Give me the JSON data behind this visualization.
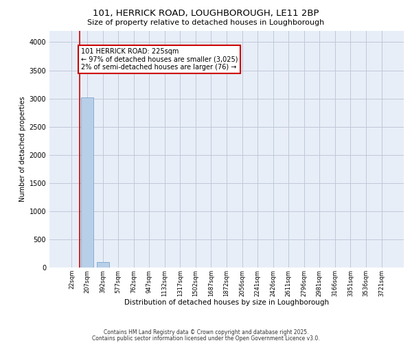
{
  "title1": "101, HERRICK ROAD, LOUGHBOROUGH, LE11 2BP",
  "title2": "Size of property relative to detached houses in Loughborough",
  "xlabel": "Distribution of detached houses by size in Loughborough",
  "ylabel": "Number of detached properties",
  "categories": [
    "22sqm",
    "207sqm",
    "392sqm",
    "577sqm",
    "762sqm",
    "947sqm",
    "1132sqm",
    "1317sqm",
    "1502sqm",
    "1687sqm",
    "1872sqm",
    "2056sqm",
    "2241sqm",
    "2426sqm",
    "2611sqm",
    "2796sqm",
    "2981sqm",
    "3166sqm",
    "3351sqm",
    "3536sqm",
    "3721sqm"
  ],
  "values": [
    0,
    3025,
    100,
    0,
    0,
    0,
    0,
    0,
    0,
    0,
    0,
    0,
    0,
    0,
    0,
    0,
    0,
    0,
    0,
    0,
    0
  ],
  "bar_color": "#b8cfe8",
  "bar_edge_color": "#7aa8cc",
  "vline_x": 0.5,
  "vline_color": "#cc0000",
  "annotation_text": "101 HERRICK ROAD: 225sqm\n← 97% of detached houses are smaller (3,025)\n2% of semi-detached houses are larger (76) →",
  "annotation_box_color": "white",
  "annotation_box_edge": "#cc0000",
  "ylim": [
    0,
    4200
  ],
  "yticks": [
    0,
    500,
    1000,
    1500,
    2000,
    2500,
    3000,
    3500,
    4000
  ],
  "background_color": "#e8eef8",
  "grid_color": "#c0c8d8",
  "footer1": "Contains HM Land Registry data © Crown copyright and database right 2025.",
  "footer2": "Contains public sector information licensed under the Open Government Licence v3.0."
}
